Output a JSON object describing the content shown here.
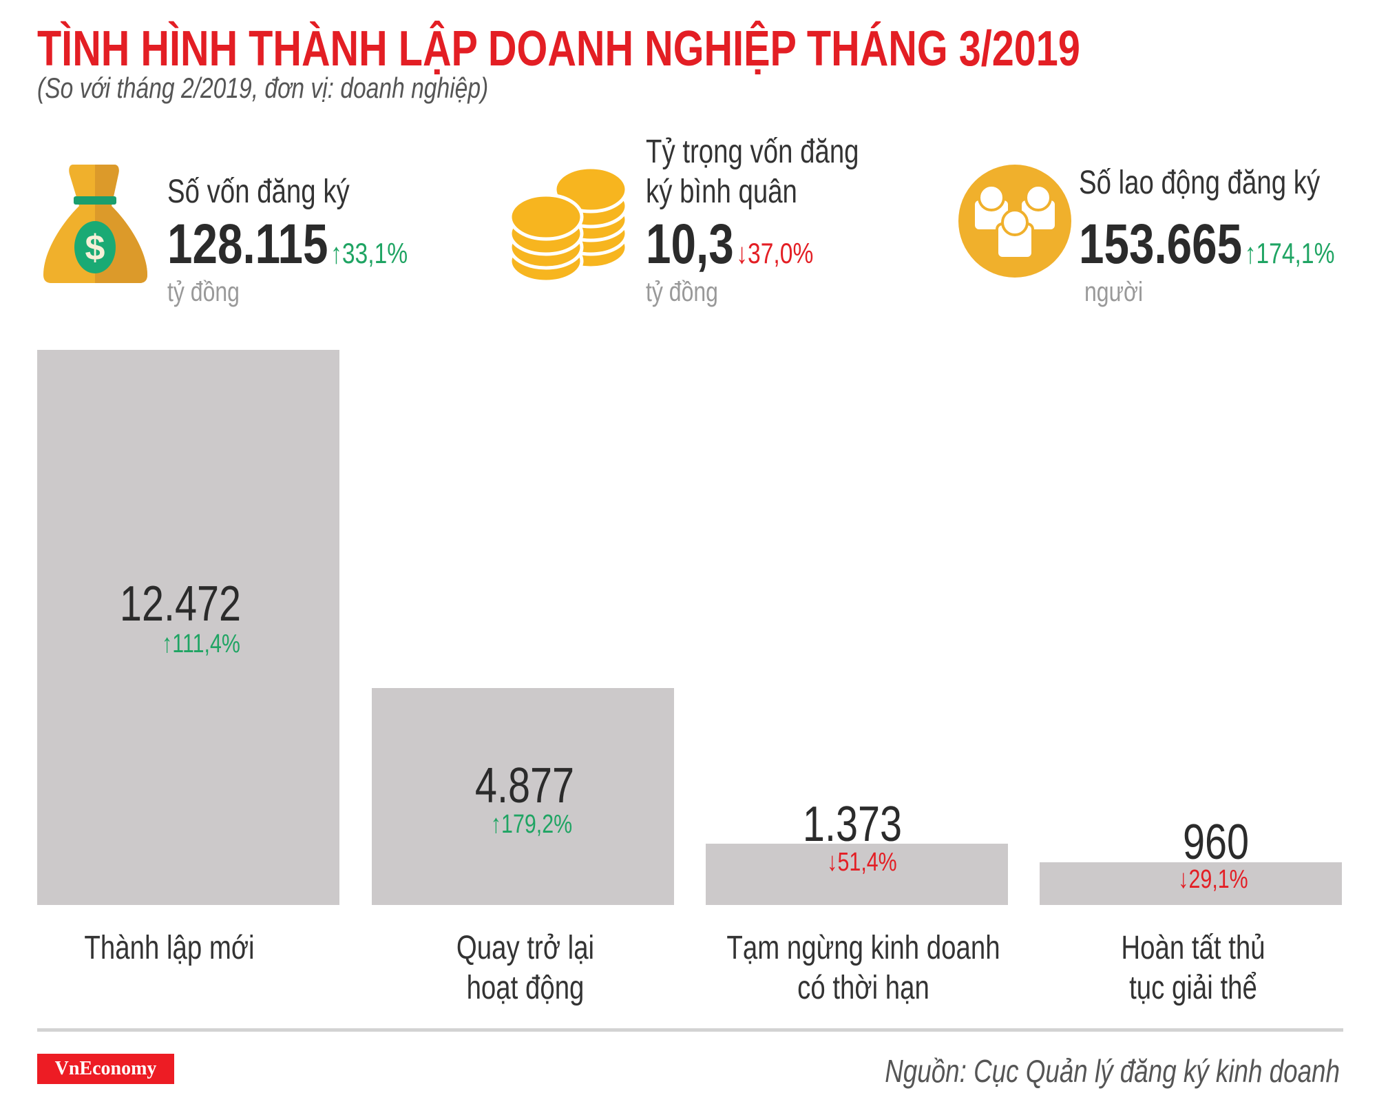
{
  "header": {
    "title": "TÌNH HÌNH THÀNH LẬP DOANH NGHIỆP THÁNG 3/2019",
    "subtitle": "(So với tháng 2/2019, đơn vị: doanh nghiệp)"
  },
  "stats": [
    {
      "label": "Số vốn đăng ký",
      "value": "128.115",
      "change": "↑33,1%",
      "direction": "up",
      "unit": "tỷ đồng",
      "icon": "money-bag-icon"
    },
    {
      "label_line1": "Tỷ trọng vốn đăng",
      "label_line2": "ký bình quân",
      "value": "10,3",
      "change": "↓37,0%",
      "direction": "down",
      "unit": "tỷ đồng",
      "icon": "coins-icon"
    },
    {
      "label": "Số lao động đăng ký",
      "value": "153.665",
      "change": "↑174,1%",
      "direction": "up",
      "unit": "người",
      "icon": "people-icon"
    }
  ],
  "colors": {
    "title": "#e31e24",
    "up": "#1fa463",
    "down": "#e31e24",
    "bar": "#ccc9ca",
    "icon": "#f0b02c"
  },
  "chart_data": {
    "type": "bar",
    "categories": [
      "Thành lập mới",
      "Quay trở lại hoạt động",
      "Tạm ngừng kinh doanh có thời hạn",
      "Hoàn tất thủ tục giải thể"
    ],
    "category_lines": [
      [
        "Thành lập mới"
      ],
      [
        "Quay trở lại",
        "hoạt động"
      ],
      [
        "Tạm ngừng kinh doanh",
        "có thời hạn"
      ],
      [
        "Hoàn tất thủ",
        "tục giải thể"
      ]
    ],
    "values": [
      12472,
      4877,
      1373,
      960
    ],
    "value_labels": [
      "12.472",
      "4.877",
      "1.373",
      "960"
    ],
    "changes": [
      "↑111,4%",
      "↑179,2%",
      "↓51,4%",
      "↓29,1%"
    ],
    "change_pct": [
      111.4,
      179.2,
      -51.4,
      -29.1
    ],
    "ylim": [
      0,
      12472
    ]
  },
  "footer": {
    "logo": "VnEconomy",
    "source": "Nguồn: Cục Quản lý đăng ký kinh doanh"
  }
}
